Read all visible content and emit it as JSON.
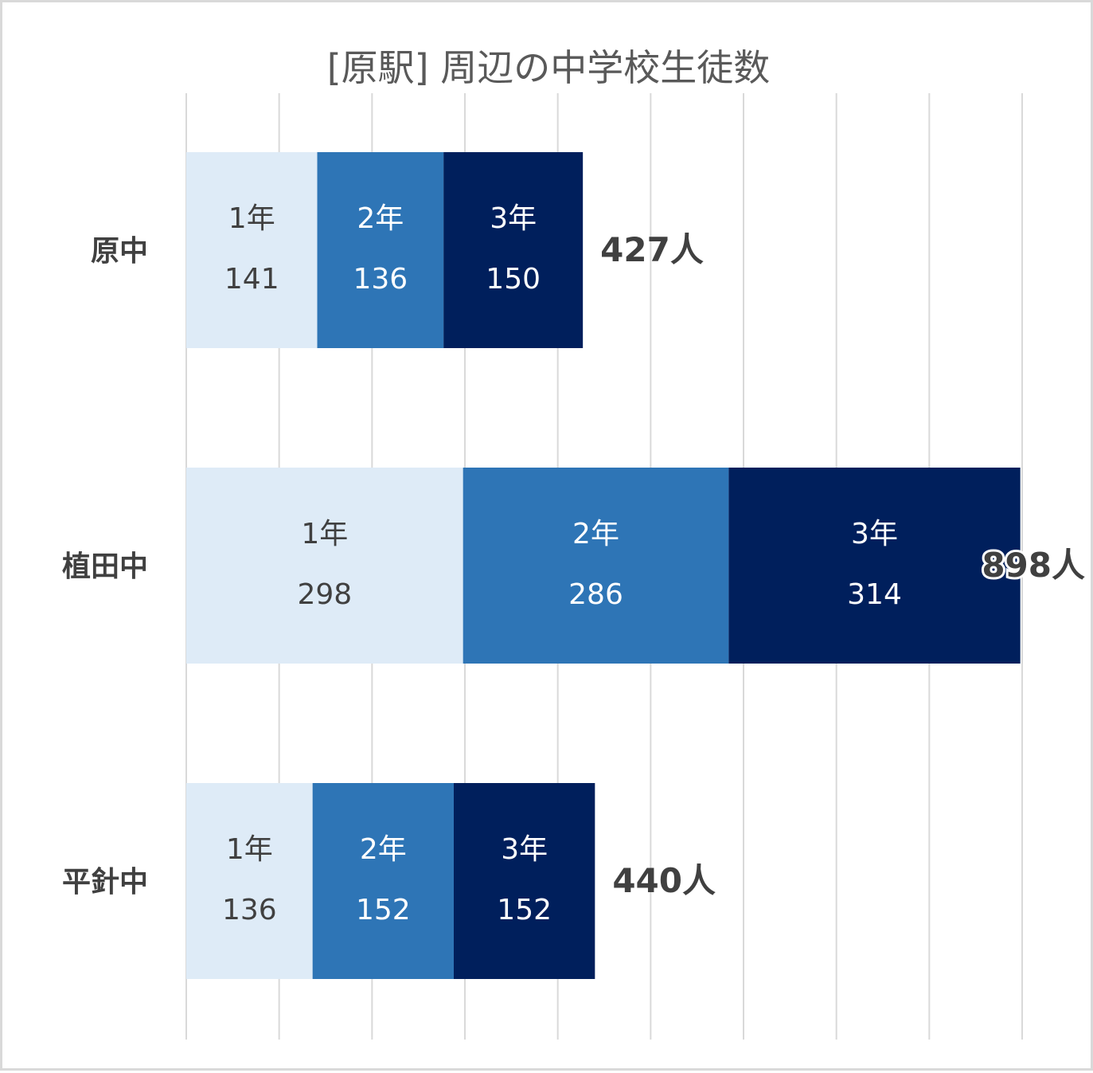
{
  "chart_data": {
    "type": "bar",
    "orientation": "horizontal",
    "stacked": true,
    "title": "[原駅] 周辺の中学校生徒数",
    "categories": [
      "原中",
      "植田中",
      "平針中"
    ],
    "series": [
      {
        "name": "1年",
        "values": [
          141,
          298,
          136
        ],
        "color": "#deebf7",
        "label_color": "#404040"
      },
      {
        "name": "2年",
        "values": [
          136,
          286,
          152
        ],
        "color": "#2e75b6",
        "label_color": "#ffffff"
      },
      {
        "name": "3年",
        "values": [
          150,
          314,
          152
        ],
        "color": "#001f5c",
        "label_color": "#ffffff"
      }
    ],
    "totals": [
      "427人",
      "898人",
      "440人"
    ],
    "xlim": [
      0,
      900
    ],
    "grid": true,
    "legend": "none",
    "gridline_color": "#d9d9d9"
  }
}
